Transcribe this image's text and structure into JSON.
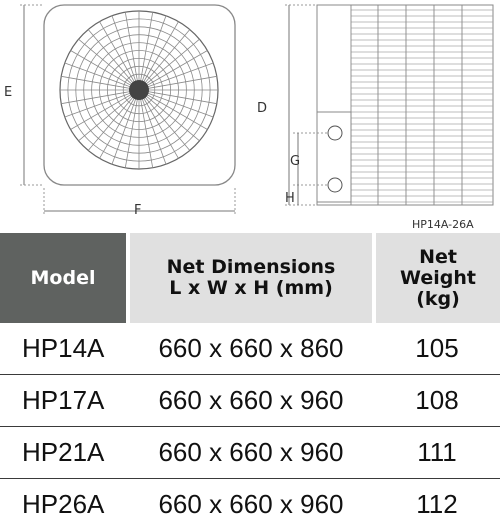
{
  "diagram": {
    "labels": {
      "e": "E",
      "f": "F",
      "d": "D",
      "g": "G",
      "h": "H"
    },
    "caption": "HP14A-26A"
  },
  "table": {
    "headers": {
      "model": "Model",
      "dimensions_line1": "Net Dimensions",
      "dimensions_line2": "L x W x H (mm)",
      "weight_line1": "Net",
      "weight_line2": "Weight",
      "weight_line3": "(kg)"
    },
    "rows": [
      {
        "model": "HP14A",
        "dimensions": "660 x 660 x 860",
        "weight": "105"
      },
      {
        "model": "HP17A",
        "dimensions": "660 x 660 x 960",
        "weight": "108"
      },
      {
        "model": "HP21A",
        "dimensions": "660 x 660 x 960",
        "weight": "111"
      },
      {
        "model": "HP26A",
        "dimensions": "660 x 660 x 960",
        "weight": "112"
      }
    ]
  }
}
